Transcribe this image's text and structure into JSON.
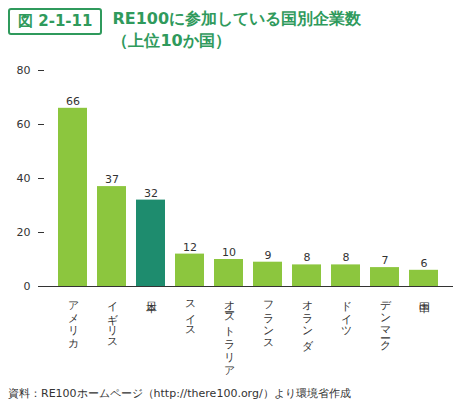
{
  "chart_data": {
    "type": "bar",
    "figure_number": "図 2-1-11",
    "title": "RE100に参加している国別企業数",
    "subtitle": "（上位10か国）",
    "categories": [
      "アメリカ",
      "イギリス",
      "日本",
      "スイス",
      "オーストラリア",
      "フランス",
      "オランダ",
      "ドイツ",
      "デンマーク",
      "中国"
    ],
    "values": [
      66,
      37,
      32,
      12,
      10,
      9,
      8,
      8,
      7,
      6
    ],
    "colors": [
      "#8cc63e",
      "#8cc63e",
      "#1e8c6e",
      "#8cc63e",
      "#8cc63e",
      "#8cc63e",
      "#8cc63e",
      "#8cc63e",
      "#8cc63e",
      "#8cc63e"
    ],
    "ylim": [
      0,
      80
    ],
    "yticks": [
      0,
      20,
      40,
      60,
      80
    ],
    "grid": false,
    "data_labels": true,
    "source": "資料：RE100ホームページ（http://there100.org/）より環境省作成"
  }
}
